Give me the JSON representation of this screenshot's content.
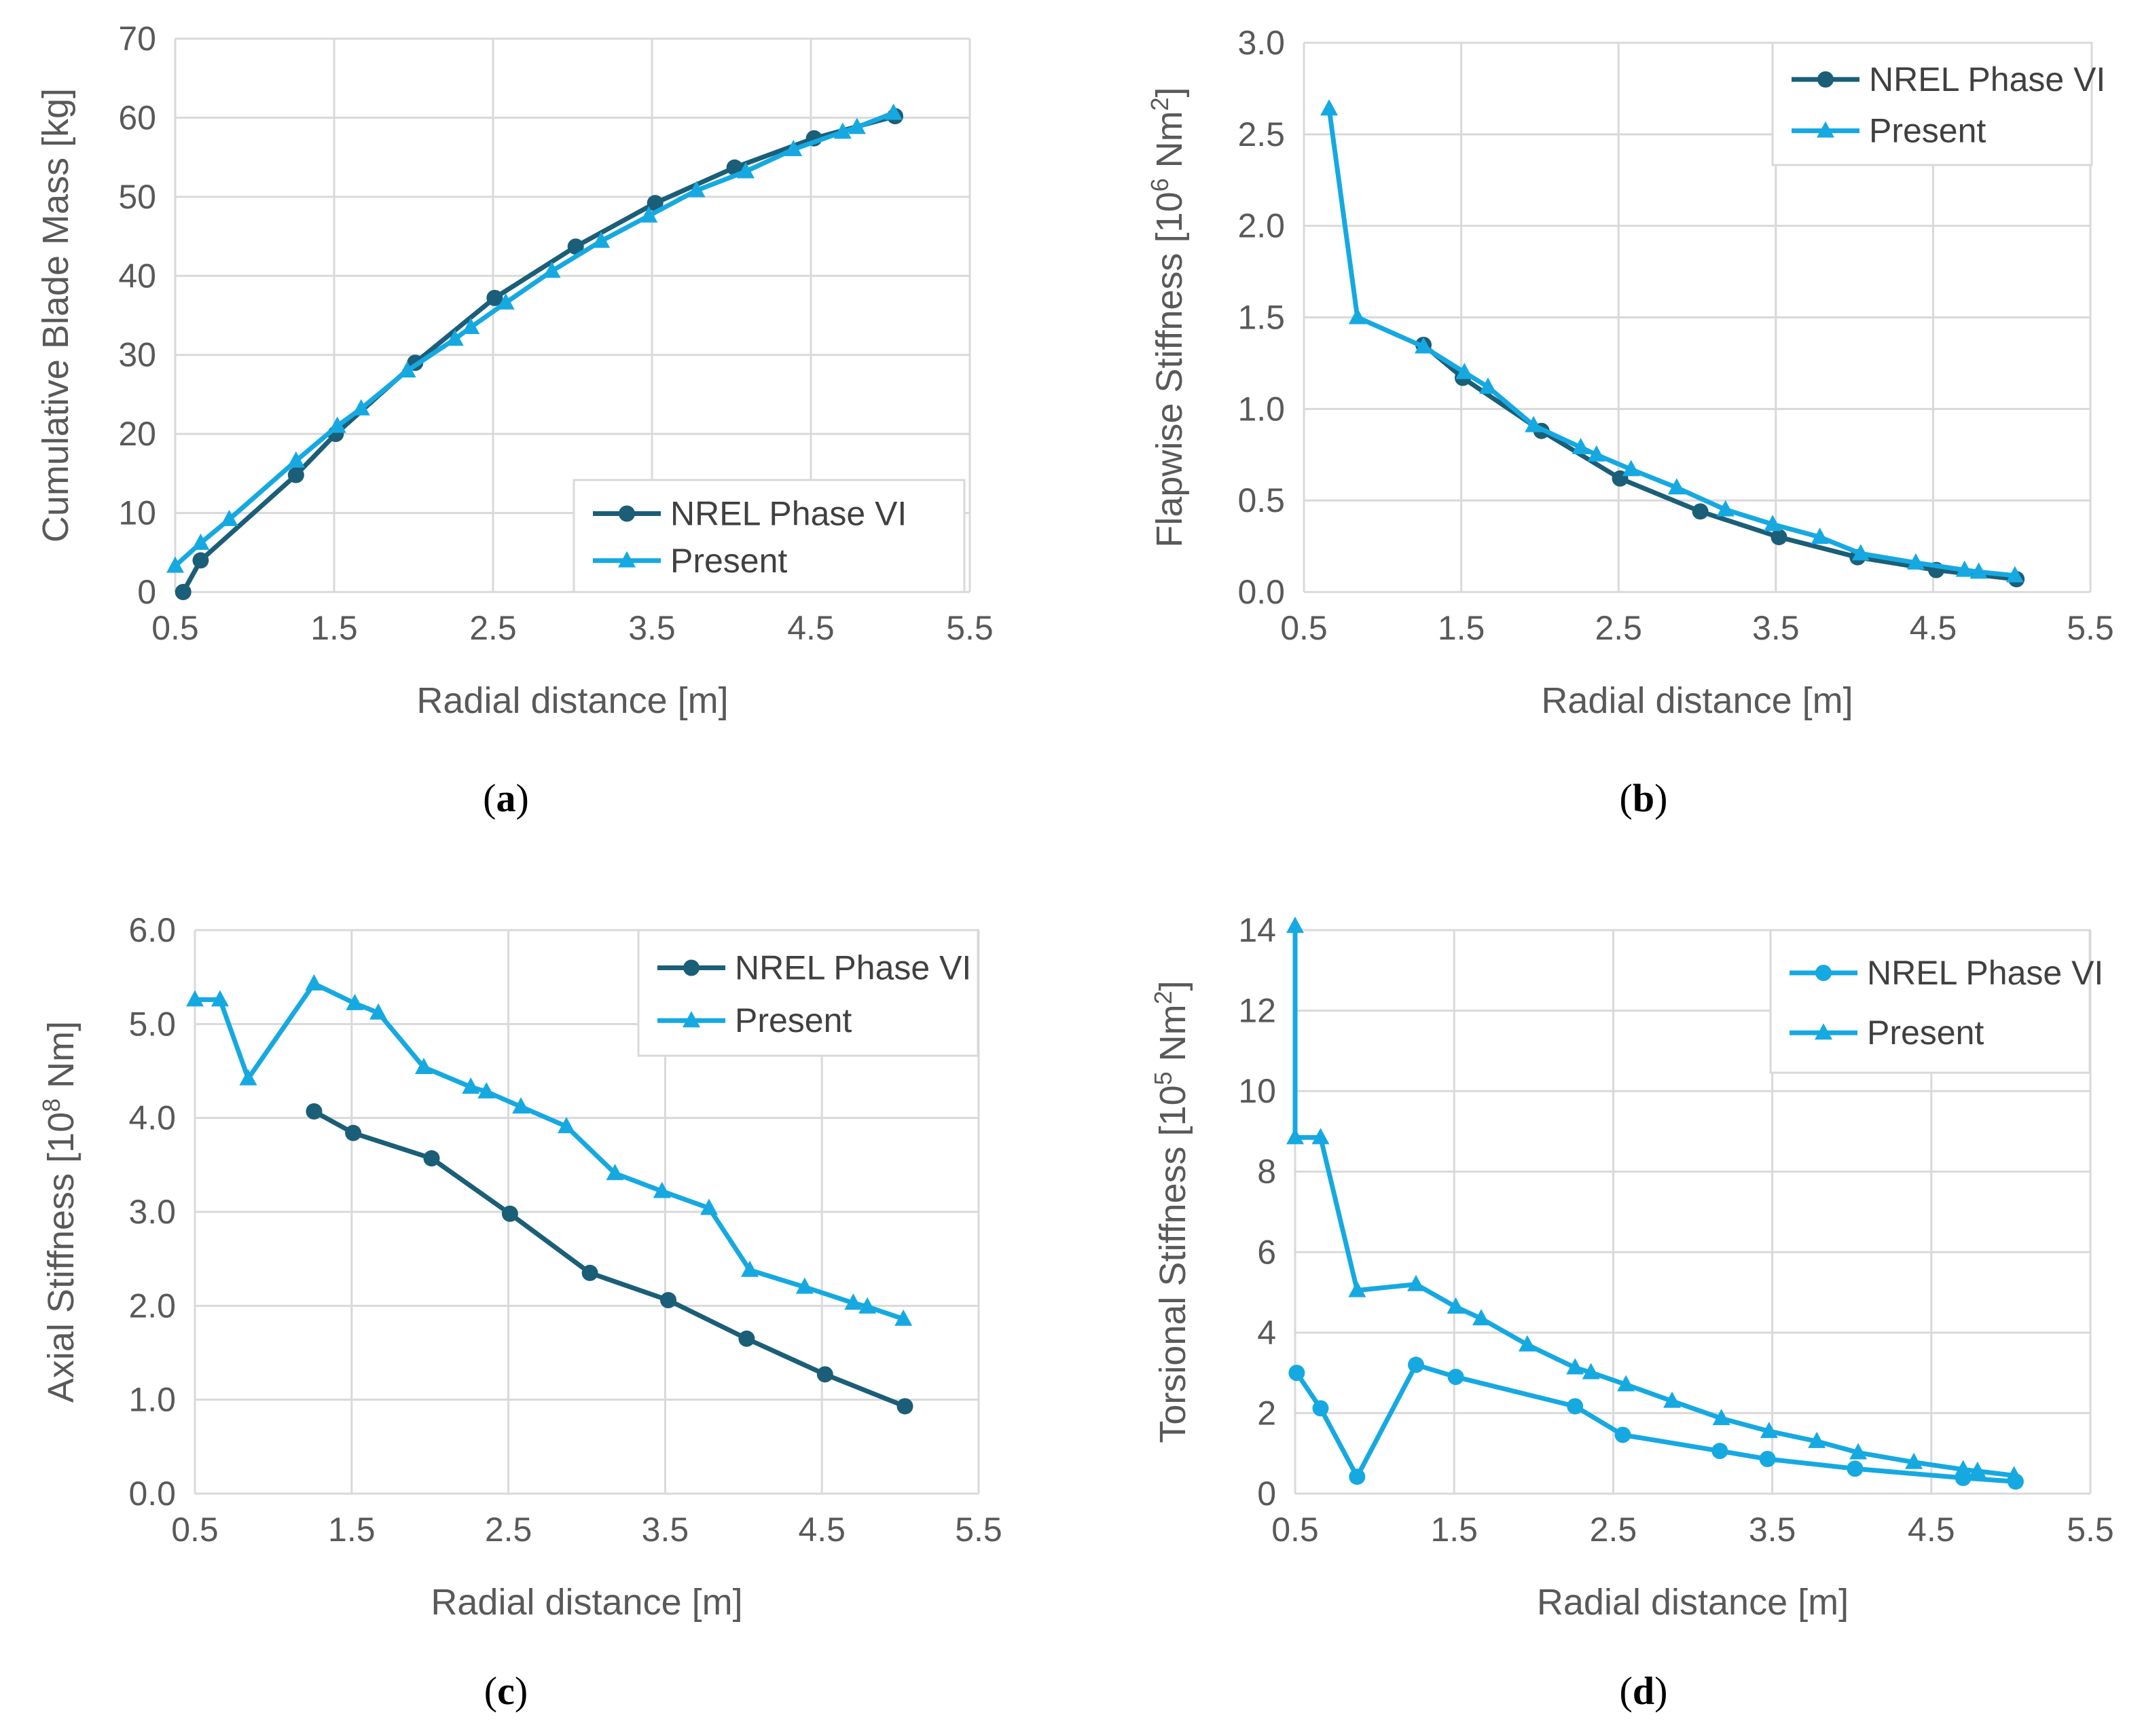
{
  "colors": {
    "nrel": "#1b5e77",
    "present": "#16a9e1"
  },
  "chart_data": [
    {
      "id": "a",
      "type": "line",
      "caption": "a",
      "xlabel": "Radial distance [m]",
      "ylabel": "Cumulative Blade Mass [kg]",
      "xlim": [
        0.5,
        5.5
      ],
      "ylim": [
        0,
        70
      ],
      "xticks": [
        "0.5",
        "1.5",
        "2.5",
        "3.5",
        "4.5",
        "5.5"
      ],
      "yticks": [
        "0",
        "10",
        "20",
        "30",
        "40",
        "50",
        "60",
        "70"
      ],
      "legend_position": "bottom-right",
      "series": [
        {
          "name": "NREL Phase VI",
          "marker": "circle",
          "color": "nrel",
          "x": [
            0.55,
            0.66,
            1.26,
            1.51,
            2.01,
            2.51,
            3.02,
            3.52,
            4.02,
            4.52,
            5.03
          ],
          "y": [
            0,
            4,
            14.8,
            20,
            29,
            37.2,
            43.7,
            49.2,
            53.7,
            57.4,
            60.2
          ]
        },
        {
          "name": "Present",
          "marker": "triangle",
          "color": "present",
          "x": [
            0.5,
            0.66,
            0.84,
            1.26,
            1.52,
            1.67,
            1.96,
            2.26,
            2.36,
            2.58,
            2.87,
            3.18,
            3.48,
            3.78,
            4.09,
            4.39,
            4.7,
            4.79,
            5.02
          ],
          "y": [
            3.3,
            6.2,
            9.2,
            16.6,
            21,
            23.2,
            28,
            32,
            33.5,
            36.6,
            40.6,
            44.4,
            47.6,
            50.8,
            53.2,
            56,
            58.2,
            58.8,
            60.6
          ]
        }
      ]
    },
    {
      "id": "b",
      "type": "line",
      "caption": "b",
      "xlabel": "Radial distance [m]",
      "ylabel": "Flapwise Stiffness [10",
      "ylabel_sup": "6",
      "ylabel_unit": " Nm",
      "ylabel_unit_sup": "2",
      "ylabel_end": "]",
      "xlim": [
        0.5,
        5.5
      ],
      "ylim": [
        0,
        3.0
      ],
      "xticks": [
        "0.5",
        "1.5",
        "2.5",
        "3.5",
        "4.5",
        "5.5"
      ],
      "yticks": [
        "0.0",
        "0.5",
        "1.0",
        "1.5",
        "2.0",
        "2.5",
        "3.0"
      ],
      "legend_position": "top-right",
      "series": [
        {
          "name": "NREL Phase VI",
          "marker": "circle",
          "color": "nrel",
          "x": [
            1.26,
            1.51,
            2.01,
            2.51,
            3.02,
            3.52,
            4.02,
            4.52,
            5.03
          ],
          "y": [
            1.35,
            1.17,
            0.88,
            0.62,
            0.44,
            0.3,
            0.19,
            0.12,
            0.07
          ]
        },
        {
          "name": "Present",
          "marker": "triangle",
          "color": "present",
          "x": [
            0.66,
            0.84,
            1.26,
            1.52,
            1.67,
            1.96,
            2.26,
            2.36,
            2.58,
            2.87,
            3.18,
            3.48,
            3.78,
            4.04,
            4.39,
            4.7,
            4.79,
            5.02
          ],
          "y": [
            2.64,
            1.5,
            1.34,
            1.2,
            1.12,
            0.91,
            0.79,
            0.75,
            0.67,
            0.57,
            0.45,
            0.37,
            0.3,
            0.21,
            0.16,
            0.12,
            0.11,
            0.09
          ]
        }
      ]
    },
    {
      "id": "c",
      "type": "line",
      "caption": "c",
      "xlabel": "Radial distance [m]",
      "ylabel": "Axial Stiffness [10",
      "ylabel_sup": "8",
      "ylabel_unit": " Nm]",
      "ylabel_unit_sup": "",
      "ylabel_end": "",
      "xlim": [
        0.5,
        5.5
      ],
      "ylim": [
        0,
        6.0
      ],
      "xticks": [
        "0.5",
        "1.5",
        "2.5",
        "3.5",
        "4.5",
        "5.5"
      ],
      "yticks": [
        "0.0",
        "1.0",
        "2.0",
        "3.0",
        "4.0",
        "5.0",
        "6.0"
      ],
      "legend_position": "top-right",
      "series": [
        {
          "name": "NREL Phase VI",
          "marker": "circle",
          "color": "nrel",
          "x": [
            1.26,
            1.51,
            2.01,
            2.51,
            3.02,
            3.52,
            4.02,
            4.52,
            5.03
          ],
          "y": [
            4.07,
            3.84,
            3.57,
            2.98,
            2.35,
            2.06,
            1.65,
            1.27,
            0.93
          ]
        },
        {
          "name": "Present",
          "marker": "triangle",
          "color": "present",
          "x": [
            0.5,
            0.66,
            0.84,
            1.26,
            1.52,
            1.67,
            1.96,
            2.26,
            2.36,
            2.58,
            2.87,
            3.18,
            3.48,
            3.78,
            4.04,
            4.39,
            4.7,
            4.79,
            5.02
          ],
          "y": [
            5.26,
            5.26,
            4.42,
            5.43,
            5.22,
            5.12,
            4.54,
            4.33,
            4.28,
            4.12,
            3.91,
            3.41,
            3.22,
            3.04,
            2.38,
            2.2,
            2.03,
            1.99,
            1.86
          ]
        }
      ]
    },
    {
      "id": "d",
      "type": "line",
      "caption": "d",
      "xlabel": "Radial distance [m]",
      "ylabel": "Torsional Stiffness [10",
      "ylabel_sup": "5",
      "ylabel_unit": " Nm",
      "ylabel_unit_sup": "2",
      "ylabel_end": "]",
      "xlim": [
        0.5,
        5.5
      ],
      "ylim": [
        0,
        14
      ],
      "xticks": [
        "0.5",
        "1.5",
        "2.5",
        "3.5",
        "4.5",
        "5.5"
      ],
      "yticks": [
        "0",
        "2",
        "4",
        "6",
        "8",
        "10",
        "12",
        "14"
      ],
      "legend_position": "top-right",
      "series": [
        {
          "name": "NREL Phase VI",
          "marker": "circle",
          "color": "present",
          "x": [
            0.51,
            0.66,
            0.89,
            1.26,
            1.51,
            2.26,
            2.56,
            3.17,
            3.47,
            4.02,
            4.7,
            5.03
          ],
          "y": [
            3,
            2.12,
            0.42,
            3.2,
            2.9,
            2.17,
            1.46,
            1.06,
            0.86,
            0.62,
            0.39,
            0.3
          ]
        },
        {
          "name": "Present",
          "marker": "triangle",
          "color": "present",
          "x": [
            0.5,
            0.5,
            0.66,
            0.89,
            1.26,
            1.51,
            1.67,
            1.96,
            2.26,
            2.36,
            2.58,
            2.87,
            3.18,
            3.48,
            3.78,
            4.04,
            4.39,
            4.7,
            4.79,
            5.02
          ],
          "y": [
            14.1,
            8.85,
            8.85,
            5.05,
            5.2,
            4.64,
            4.35,
            3.7,
            3.13,
            3.01,
            2.71,
            2.3,
            1.87,
            1.55,
            1.3,
            1.02,
            0.78,
            0.6,
            0.56,
            0.45
          ]
        }
      ]
    }
  ]
}
